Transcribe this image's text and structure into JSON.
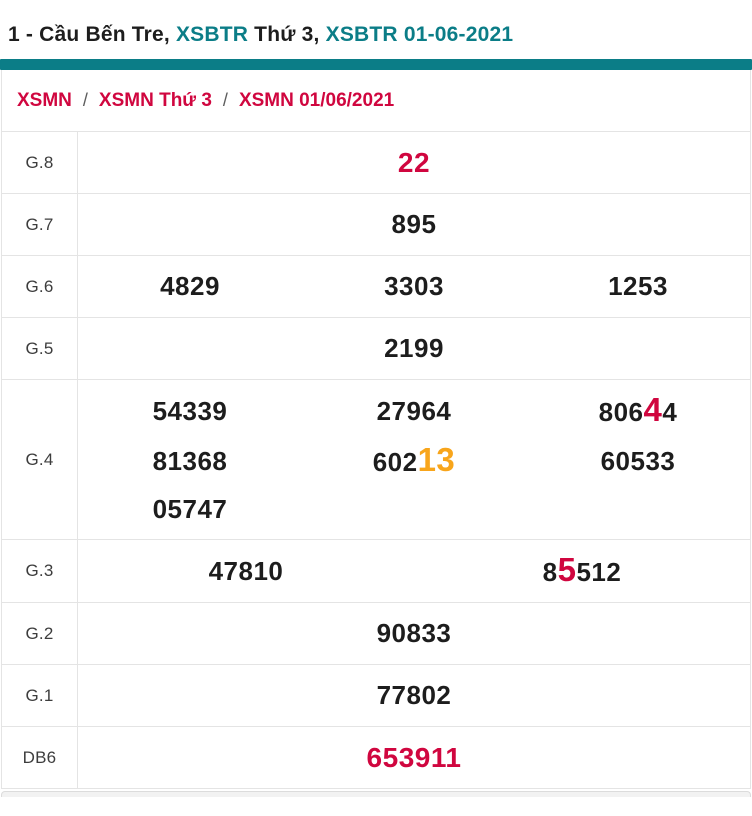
{
  "page_title": {
    "segments": [
      {
        "text": "1 - Cầu Bến Tre, ",
        "style": "dark"
      },
      {
        "text": "XSBTR",
        "style": "teal"
      },
      {
        "text": " Thứ 3, ",
        "style": "dark"
      },
      {
        "text": "XSBTR 01-06-2021",
        "style": "teal"
      }
    ]
  },
  "breadcrumb": {
    "separator": "/",
    "items": [
      "XSMN",
      "XSMN Thứ 3",
      "XSMN 01/06/2021"
    ]
  },
  "results_table": {
    "rows": [
      {
        "label": "G.8",
        "columns": 1,
        "cells": [
          [
            {
              "t": "22",
              "s": "red"
            }
          ]
        ]
      },
      {
        "label": "G.7",
        "columns": 1,
        "cells": [
          [
            {
              "t": "895"
            }
          ]
        ]
      },
      {
        "label": "G.6",
        "columns": 3,
        "cells": [
          [
            {
              "t": "4829"
            }
          ],
          [
            {
              "t": "3303"
            }
          ],
          [
            {
              "t": "1253"
            }
          ]
        ]
      },
      {
        "label": "G.5",
        "columns": 1,
        "cells": [
          [
            {
              "t": "2199"
            }
          ]
        ]
      },
      {
        "label": "G.4",
        "columns": 3,
        "cells": [
          [
            {
              "t": "54339"
            }
          ],
          [
            {
              "t": "27964"
            }
          ],
          [
            {
              "t": "806"
            },
            {
              "t": "4",
              "s": "red-big"
            },
            {
              "t": "4"
            }
          ],
          [
            {
              "t": "81368"
            }
          ],
          [
            {
              "t": "602"
            },
            {
              "t": "13",
              "s": "orange-big"
            }
          ],
          [
            {
              "t": "60533"
            }
          ],
          [
            {
              "t": "05747"
            }
          ]
        ]
      },
      {
        "label": "G.3",
        "columns": 2,
        "cells": [
          [
            {
              "t": "47810"
            }
          ],
          [
            {
              "t": "8"
            },
            {
              "t": "5",
              "s": "red-big"
            },
            {
              "t": "512"
            }
          ]
        ]
      },
      {
        "label": "G.2",
        "columns": 1,
        "cells": [
          [
            {
              "t": "90833"
            }
          ]
        ]
      },
      {
        "label": "G.1",
        "columns": 1,
        "cells": [
          [
            {
              "t": "77802"
            }
          ]
        ]
      },
      {
        "label": "DB6",
        "columns": 1,
        "cells": [
          [
            {
              "t": "653911",
              "s": "red"
            }
          ]
        ]
      }
    ]
  },
  "colors": {
    "teal": "#0b7d87",
    "red": "#d0063f",
    "orange": "#f8a51b"
  }
}
